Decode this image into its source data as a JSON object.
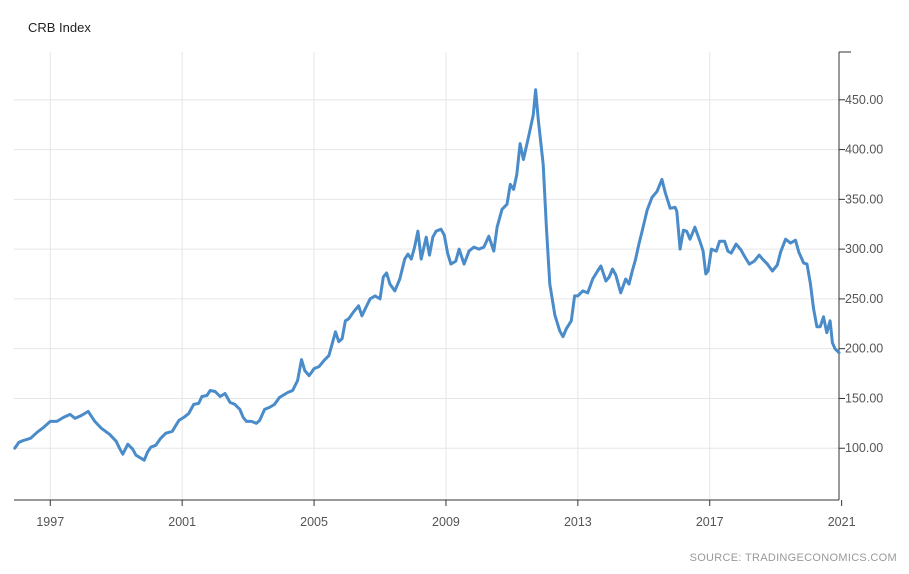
{
  "chart_data": {
    "type": "line",
    "title": "CRB Index",
    "source": "SOURCE: TRADINGECONOMICS.COM",
    "xlabel": "",
    "ylabel": "",
    "xlim": [
      1995.9,
      2020.92
    ],
    "ylim": [
      48,
      498
    ],
    "x_ticks": [
      1997,
      2001,
      2005,
      2009,
      2013,
      2017,
      2021
    ],
    "x_tick_labels": [
      "1997",
      "2001",
      "2005",
      "2009",
      "2013",
      "2017",
      "2021"
    ],
    "y_ticks": [
      100,
      150,
      200,
      250,
      300,
      350,
      400,
      450
    ],
    "y_tick_labels": [
      "100.00",
      "150.00",
      "200.00",
      "250.00",
      "300.00",
      "350.00",
      "400.00",
      "450.00"
    ],
    "grid": true,
    "y_axis_side": "right",
    "line_color": "#4a8bc9",
    "series": [
      {
        "name": "",
        "points": [
          [
            1995.92,
            100
          ],
          [
            1996.05,
            106
          ],
          [
            1996.2,
            108
          ],
          [
            1996.4,
            110
          ],
          [
            1996.6,
            116
          ],
          [
            1996.8,
            121
          ],
          [
            1997.0,
            127
          ],
          [
            1997.2,
            127
          ],
          [
            1997.4,
            131
          ],
          [
            1997.6,
            134
          ],
          [
            1997.75,
            130
          ],
          [
            1997.95,
            133
          ],
          [
            1998.15,
            137
          ],
          [
            1998.35,
            127
          ],
          [
            1998.55,
            120
          ],
          [
            1998.8,
            114
          ],
          [
            1999.0,
            107
          ],
          [
            1999.1,
            100
          ],
          [
            1999.2,
            94
          ],
          [
            1999.35,
            104
          ],
          [
            1999.5,
            99
          ],
          [
            1999.6,
            93
          ],
          [
            1999.75,
            90
          ],
          [
            1999.85,
            88
          ],
          [
            1999.95,
            96
          ],
          [
            2000.05,
            101
          ],
          [
            2000.2,
            103
          ],
          [
            2000.35,
            110
          ],
          [
            2000.5,
            115
          ],
          [
            2000.7,
            117
          ],
          [
            2000.9,
            128
          ],
          [
            2001.05,
            131
          ],
          [
            2001.2,
            135
          ],
          [
            2001.35,
            144
          ],
          [
            2001.5,
            145
          ],
          [
            2001.6,
            152
          ],
          [
            2001.75,
            153
          ],
          [
            2001.85,
            158
          ],
          [
            2002.0,
            157
          ],
          [
            2002.15,
            152
          ],
          [
            2002.3,
            155
          ],
          [
            2002.45,
            146
          ],
          [
            2002.6,
            144
          ],
          [
            2002.75,
            139
          ],
          [
            2002.85,
            131
          ],
          [
            2002.95,
            127
          ],
          [
            2003.1,
            127
          ],
          [
            2003.25,
            125
          ],
          [
            2003.35,
            128
          ],
          [
            2003.5,
            139
          ],
          [
            2003.65,
            141
          ],
          [
            2003.8,
            144
          ],
          [
            2003.95,
            151
          ],
          [
            2004.05,
            153
          ],
          [
            2004.2,
            156
          ],
          [
            2004.35,
            158
          ],
          [
            2004.5,
            168
          ],
          [
            2004.62,
            189
          ],
          [
            2004.72,
            178
          ],
          [
            2004.85,
            173
          ],
          [
            2005.0,
            180
          ],
          [
            2005.15,
            182
          ],
          [
            2005.3,
            188
          ],
          [
            2005.45,
            193
          ],
          [
            2005.55,
            205
          ],
          [
            2005.65,
            217
          ],
          [
            2005.75,
            207
          ],
          [
            2005.85,
            210
          ],
          [
            2005.95,
            228
          ],
          [
            2006.05,
            230
          ],
          [
            2006.2,
            237
          ],
          [
            2006.35,
            243
          ],
          [
            2006.45,
            233
          ],
          [
            2006.55,
            240
          ],
          [
            2006.7,
            250
          ],
          [
            2006.85,
            253
          ],
          [
            2007.0,
            250
          ],
          [
            2007.1,
            272
          ],
          [
            2007.2,
            276
          ],
          [
            2007.3,
            265
          ],
          [
            2007.45,
            258
          ],
          [
            2007.6,
            270
          ],
          [
            2007.75,
            290
          ],
          [
            2007.85,
            295
          ],
          [
            2007.95,
            290
          ],
          [
            2008.05,
            302
          ],
          [
            2008.15,
            318
          ],
          [
            2008.25,
            290
          ],
          [
            2008.4,
            312
          ],
          [
            2008.5,
            294
          ],
          [
            2008.6,
            312
          ],
          [
            2008.7,
            318
          ],
          [
            2008.85,
            320
          ],
          [
            2008.95,
            314
          ],
          [
            2009.05,
            296
          ],
          [
            2009.15,
            285
          ],
          [
            2009.3,
            288
          ],
          [
            2009.4,
            300
          ],
          [
            2009.55,
            285
          ],
          [
            2009.7,
            298
          ],
          [
            2009.85,
            302
          ],
          [
            2010.0,
            300
          ],
          [
            2010.15,
            302
          ],
          [
            2010.3,
            313
          ],
          [
            2010.45,
            298
          ],
          [
            2010.55,
            322
          ],
          [
            2010.7,
            340
          ],
          [
            2010.85,
            345
          ],
          [
            2010.95,
            365
          ],
          [
            2011.05,
            360
          ],
          [
            2011.15,
            375
          ],
          [
            2011.25,
            406
          ],
          [
            2011.35,
            390
          ],
          [
            2011.5,
            412
          ],
          [
            2011.65,
            435
          ],
          [
            2011.72,
            460
          ],
          [
            2011.8,
            430
          ],
          [
            2011.95,
            385
          ],
          [
            2012.05,
            320
          ],
          [
            2012.15,
            265
          ],
          [
            2012.3,
            234
          ],
          [
            2012.45,
            218
          ],
          [
            2012.55,
            212
          ],
          [
            2012.65,
            220
          ],
          [
            2012.8,
            228
          ],
          [
            2012.9,
            253
          ],
          [
            2013.0,
            253
          ],
          [
            2013.15,
            258
          ],
          [
            2013.3,
            256
          ],
          [
            2013.45,
            270
          ],
          [
            2013.6,
            278
          ],
          [
            2013.7,
            283
          ],
          [
            2013.85,
            268
          ],
          [
            2013.95,
            272
          ],
          [
            2014.05,
            280
          ],
          [
            2014.15,
            274
          ],
          [
            2014.3,
            256
          ],
          [
            2014.45,
            270
          ],
          [
            2014.55,
            265
          ],
          [
            2014.65,
            278
          ],
          [
            2014.75,
            290
          ],
          [
            2014.85,
            305
          ],
          [
            2014.95,
            318
          ],
          [
            2015.1,
            339
          ],
          [
            2015.25,
            352
          ],
          [
            2015.4,
            358
          ],
          [
            2015.55,
            370
          ],
          [
            2015.65,
            357
          ],
          [
            2015.8,
            341
          ],
          [
            2015.95,
            342
          ],
          [
            2016.0,
            338
          ],
          [
            2016.1,
            300
          ],
          [
            2016.2,
            319
          ],
          [
            2016.3,
            318
          ],
          [
            2016.4,
            310
          ],
          [
            2016.55,
            322
          ],
          [
            2016.7,
            308
          ],
          [
            2016.8,
            298
          ],
          [
            2016.88,
            275
          ],
          [
            2016.95,
            278
          ],
          [
            2017.05,
            300
          ],
          [
            2017.2,
            298
          ],
          [
            2017.3,
            308
          ],
          [
            2017.45,
            308
          ],
          [
            2017.55,
            298
          ],
          [
            2017.65,
            296
          ],
          [
            2017.8,
            305
          ],
          [
            2017.95,
            299
          ],
          [
            2018.05,
            293
          ],
          [
            2018.2,
            285
          ],
          [
            2018.35,
            288
          ],
          [
            2018.5,
            294
          ],
          [
            2018.6,
            290
          ],
          [
            2018.75,
            285
          ],
          [
            2018.9,
            278
          ],
          [
            2019.05,
            284
          ],
          [
            2019.15,
            297
          ],
          [
            2019.3,
            310
          ],
          [
            2019.45,
            306
          ],
          [
            2019.6,
            309
          ],
          [
            2019.7,
            297
          ],
          [
            2019.85,
            286
          ],
          [
            2019.95,
            285
          ],
          [
            2020.05,
            266
          ],
          [
            2020.15,
            240
          ],
          [
            2020.25,
            222
          ],
          [
            2020.35,
            222
          ],
          [
            2020.45,
            232
          ],
          [
            2020.55,
            216
          ],
          [
            2020.65,
            228
          ],
          [
            2020.72,
            206
          ],
          [
            2020.8,
            200
          ],
          [
            2020.92,
            196
          ]
        ]
      }
    ]
  }
}
